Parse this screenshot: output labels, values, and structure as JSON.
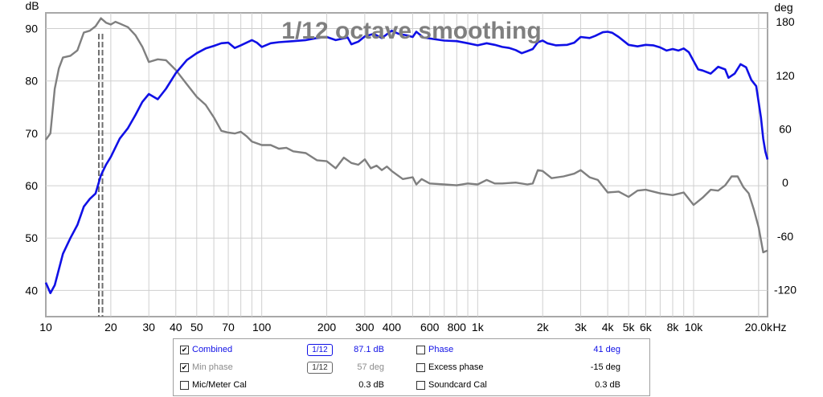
{
  "chart_data": {
    "type": "line",
    "title": "1/12 octave smoothing",
    "y_left_label": "dB",
    "y_right_label": "deg",
    "x_unit": "Hz",
    "x_scale": "log",
    "xlim": [
      10,
      22000
    ],
    "ylim_left": [
      35,
      93
    ],
    "ylim_right": [
      -150,
      190
    ],
    "x_ticks": [
      {
        "v": 10,
        "label": "10"
      },
      {
        "v": 20,
        "label": "20"
      },
      {
        "v": 30,
        "label": "30"
      },
      {
        "v": 40,
        "label": "40"
      },
      {
        "v": 50,
        "label": "50"
      },
      {
        "v": 70,
        "label": "70"
      },
      {
        "v": 100,
        "label": "100"
      },
      {
        "v": 200,
        "label": "200"
      },
      {
        "v": 300,
        "label": "300"
      },
      {
        "v": 400,
        "label": "400"
      },
      {
        "v": 600,
        "label": "600"
      },
      {
        "v": 800,
        "label": "800"
      },
      {
        "v": 1000,
        "label": "1k"
      },
      {
        "v": 2000,
        "label": "2k"
      },
      {
        "v": 3000,
        "label": "3k"
      },
      {
        "v": 4000,
        "label": "4k"
      },
      {
        "v": 5000,
        "label": "5k"
      },
      {
        "v": 6000,
        "label": "6k"
      },
      {
        "v": 8000,
        "label": "8k"
      },
      {
        "v": 10000,
        "label": "10k"
      },
      {
        "v": 20000,
        "label": "20.0k"
      }
    ],
    "y_left_ticks": [
      40,
      50,
      60,
      70,
      80,
      90
    ],
    "y_right_ticks": [
      -120,
      -60,
      0,
      60,
      120,
      180
    ],
    "markers_hz": [
      17.6,
      18.3
    ],
    "series": [
      {
        "name": "Combined",
        "axis": "left",
        "color": "#1010e6",
        "points": [
          [
            10,
            41.5
          ],
          [
            10.5,
            39.5
          ],
          [
            11,
            41
          ],
          [
            12,
            47
          ],
          [
            13,
            50
          ],
          [
            14,
            52.5
          ],
          [
            15,
            56
          ],
          [
            16,
            57.5
          ],
          [
            17,
            58.5
          ],
          [
            18,
            62
          ],
          [
            19,
            64
          ],
          [
            20,
            65.5
          ],
          [
            22,
            69
          ],
          [
            24,
            71
          ],
          [
            26,
            73.5
          ],
          [
            28,
            76
          ],
          [
            30,
            77.5
          ],
          [
            33,
            76.5
          ],
          [
            36,
            78.5
          ],
          [
            40,
            81.5
          ],
          [
            45,
            84
          ],
          [
            50,
            85.3
          ],
          [
            55,
            86.2
          ],
          [
            60,
            86.7
          ],
          [
            65,
            87.2
          ],
          [
            70,
            87.3
          ],
          [
            75,
            86.3
          ],
          [
            80,
            86.8
          ],
          [
            90,
            87.8
          ],
          [
            95,
            87.3
          ],
          [
            100,
            86.5
          ],
          [
            110,
            87.2
          ],
          [
            120,
            87.4
          ],
          [
            140,
            87.6
          ],
          [
            160,
            87.8
          ],
          [
            180,
            88.2
          ],
          [
            200,
            88.4
          ],
          [
            220,
            87.8
          ],
          [
            250,
            88.3
          ],
          [
            260,
            87
          ],
          [
            280,
            87.5
          ],
          [
            300,
            88.5
          ],
          [
            330,
            89
          ],
          [
            360,
            88.2
          ],
          [
            400,
            89.6
          ],
          [
            430,
            89
          ],
          [
            470,
            88.7
          ],
          [
            500,
            88.4
          ],
          [
            520,
            89.4
          ],
          [
            560,
            88.3
          ],
          [
            600,
            88.1
          ],
          [
            700,
            87.7
          ],
          [
            800,
            87.6
          ],
          [
            900,
            87.2
          ],
          [
            1000,
            86.8
          ],
          [
            1100,
            87.2
          ],
          [
            1200,
            86.9
          ],
          [
            1300,
            86.5
          ],
          [
            1400,
            86.3
          ],
          [
            1500,
            85.9
          ],
          [
            1600,
            85.3
          ],
          [
            1700,
            85.7
          ],
          [
            1800,
            86.1
          ],
          [
            1900,
            87.4
          ],
          [
            2000,
            87.7
          ],
          [
            2100,
            87.2
          ],
          [
            2300,
            86.8
          ],
          [
            2600,
            86.9
          ],
          [
            2800,
            87.3
          ],
          [
            3000,
            88.4
          ],
          [
            3300,
            88.2
          ],
          [
            3500,
            88.6
          ],
          [
            3800,
            89.3
          ],
          [
            4000,
            89.4
          ],
          [
            4200,
            89.2
          ],
          [
            4500,
            88.4
          ],
          [
            5000,
            86.9
          ],
          [
            5500,
            86.6
          ],
          [
            6000,
            86.9
          ],
          [
            6500,
            86.8
          ],
          [
            7000,
            86.4
          ],
          [
            7500,
            85.8
          ],
          [
            8000,
            86.1
          ],
          [
            8500,
            85.8
          ],
          [
            9000,
            86.2
          ],
          [
            9500,
            85.5
          ],
          [
            10000,
            83.8
          ],
          [
            10500,
            82.2
          ],
          [
            11000,
            82
          ],
          [
            12000,
            81.4
          ],
          [
            13000,
            82.7
          ],
          [
            14000,
            82.2
          ],
          [
            14500,
            80.6
          ],
          [
            15500,
            81.4
          ],
          [
            16500,
            83.2
          ],
          [
            17500,
            82.6
          ],
          [
            18500,
            80.2
          ],
          [
            19500,
            79
          ],
          [
            20500,
            73
          ],
          [
            21000,
            69
          ],
          [
            21500,
            66.5
          ],
          [
            22000,
            65
          ]
        ]
      },
      {
        "name": "Phase",
        "axis": "right",
        "color": "#7f7f7f",
        "points": [
          [
            10,
            48
          ],
          [
            10.5,
            55
          ],
          [
            11,
            105
          ],
          [
            11.5,
            128
          ],
          [
            12,
            140
          ],
          [
            13,
            142
          ],
          [
            14,
            148
          ],
          [
            15,
            168
          ],
          [
            16,
            170
          ],
          [
            17,
            175
          ],
          [
            18,
            184
          ],
          [
            19,
            179
          ],
          [
            20,
            177
          ],
          [
            21,
            180
          ],
          [
            22,
            178
          ],
          [
            24,
            174
          ],
          [
            26,
            165
          ],
          [
            28,
            152
          ],
          [
            30,
            135
          ],
          [
            33,
            138
          ],
          [
            36,
            137
          ],
          [
            40,
            126
          ],
          [
            45,
            110
          ],
          [
            50,
            96
          ],
          [
            55,
            87
          ],
          [
            60,
            73
          ],
          [
            65,
            58
          ],
          [
            70,
            56
          ],
          [
            75,
            55
          ],
          [
            80,
            57
          ],
          [
            85,
            52
          ],
          [
            90,
            46
          ],
          [
            100,
            42
          ],
          [
            110,
            42
          ],
          [
            120,
            38
          ],
          [
            130,
            39
          ],
          [
            140,
            35
          ],
          [
            160,
            33
          ],
          [
            180,
            25
          ],
          [
            200,
            24
          ],
          [
            220,
            16
          ],
          [
            240,
            28
          ],
          [
            260,
            22
          ],
          [
            280,
            20
          ],
          [
            300,
            26
          ],
          [
            320,
            16
          ],
          [
            340,
            19
          ],
          [
            360,
            14
          ],
          [
            380,
            18
          ],
          [
            400,
            13
          ],
          [
            450,
            4
          ],
          [
            500,
            6
          ],
          [
            520,
            -2
          ],
          [
            550,
            4
          ],
          [
            600,
            -1
          ],
          [
            700,
            -2
          ],
          [
            800,
            -3
          ],
          [
            900,
            -1
          ],
          [
            1000,
            -2
          ],
          [
            1100,
            3
          ],
          [
            1200,
            -1
          ],
          [
            1300,
            -1
          ],
          [
            1500,
            0
          ],
          [
            1700,
            -2
          ],
          [
            1800,
            -1
          ],
          [
            1900,
            14
          ],
          [
            2000,
            13
          ],
          [
            2200,
            5
          ],
          [
            2500,
            7
          ],
          [
            2800,
            10
          ],
          [
            3000,
            14
          ],
          [
            3300,
            6
          ],
          [
            3600,
            3
          ],
          [
            4000,
            -11
          ],
          [
            4500,
            -10
          ],
          [
            5000,
            -16
          ],
          [
            5500,
            -9
          ],
          [
            6000,
            -8
          ],
          [
            7000,
            -12
          ],
          [
            8000,
            -14
          ],
          [
            9000,
            -11
          ],
          [
            10000,
            -25
          ],
          [
            11000,
            -17
          ],
          [
            12000,
            -8
          ],
          [
            13000,
            -9
          ],
          [
            14000,
            -3
          ],
          [
            15000,
            7
          ],
          [
            16000,
            7
          ],
          [
            17000,
            -5
          ],
          [
            18000,
            -12
          ],
          [
            19000,
            -30
          ],
          [
            20000,
            -50
          ],
          [
            21000,
            -78
          ],
          [
            22000,
            -76
          ]
        ]
      }
    ]
  },
  "legend": {
    "rows": [
      {
        "left": {
          "label": "Combined",
          "checked": "✔",
          "color": "#1010e6",
          "smoothing": "1/12",
          "value": "87.1 dB"
        },
        "right": {
          "label": "Phase",
          "checked": "",
          "color": "#1010e6",
          "value": "41 deg"
        }
      },
      {
        "left": {
          "label": "Min phase",
          "checked": "✔",
          "color": "#8c8c8c",
          "smoothing": "1/12",
          "value": "57 deg"
        },
        "right": {
          "label": "Excess phase",
          "checked": "",
          "color": "#000000",
          "value": "-15 deg"
        }
      },
      {
        "left": {
          "label": "Mic/Meter Cal",
          "checked": "",
          "color": "#000000",
          "smoothing": "",
          "value": "0.3 dB"
        },
        "right": {
          "label": "Soundcard Cal",
          "checked": "",
          "color": "#000000",
          "value": "0.3 dB"
        }
      }
    ]
  },
  "colors": {
    "plot_bg": "#ffffff",
    "grid": "#cfcfcf",
    "frame": "#a8a8a8",
    "axis_text": "#000000",
    "title": "#7f7f7f",
    "marker": "#6e6e6e"
  }
}
